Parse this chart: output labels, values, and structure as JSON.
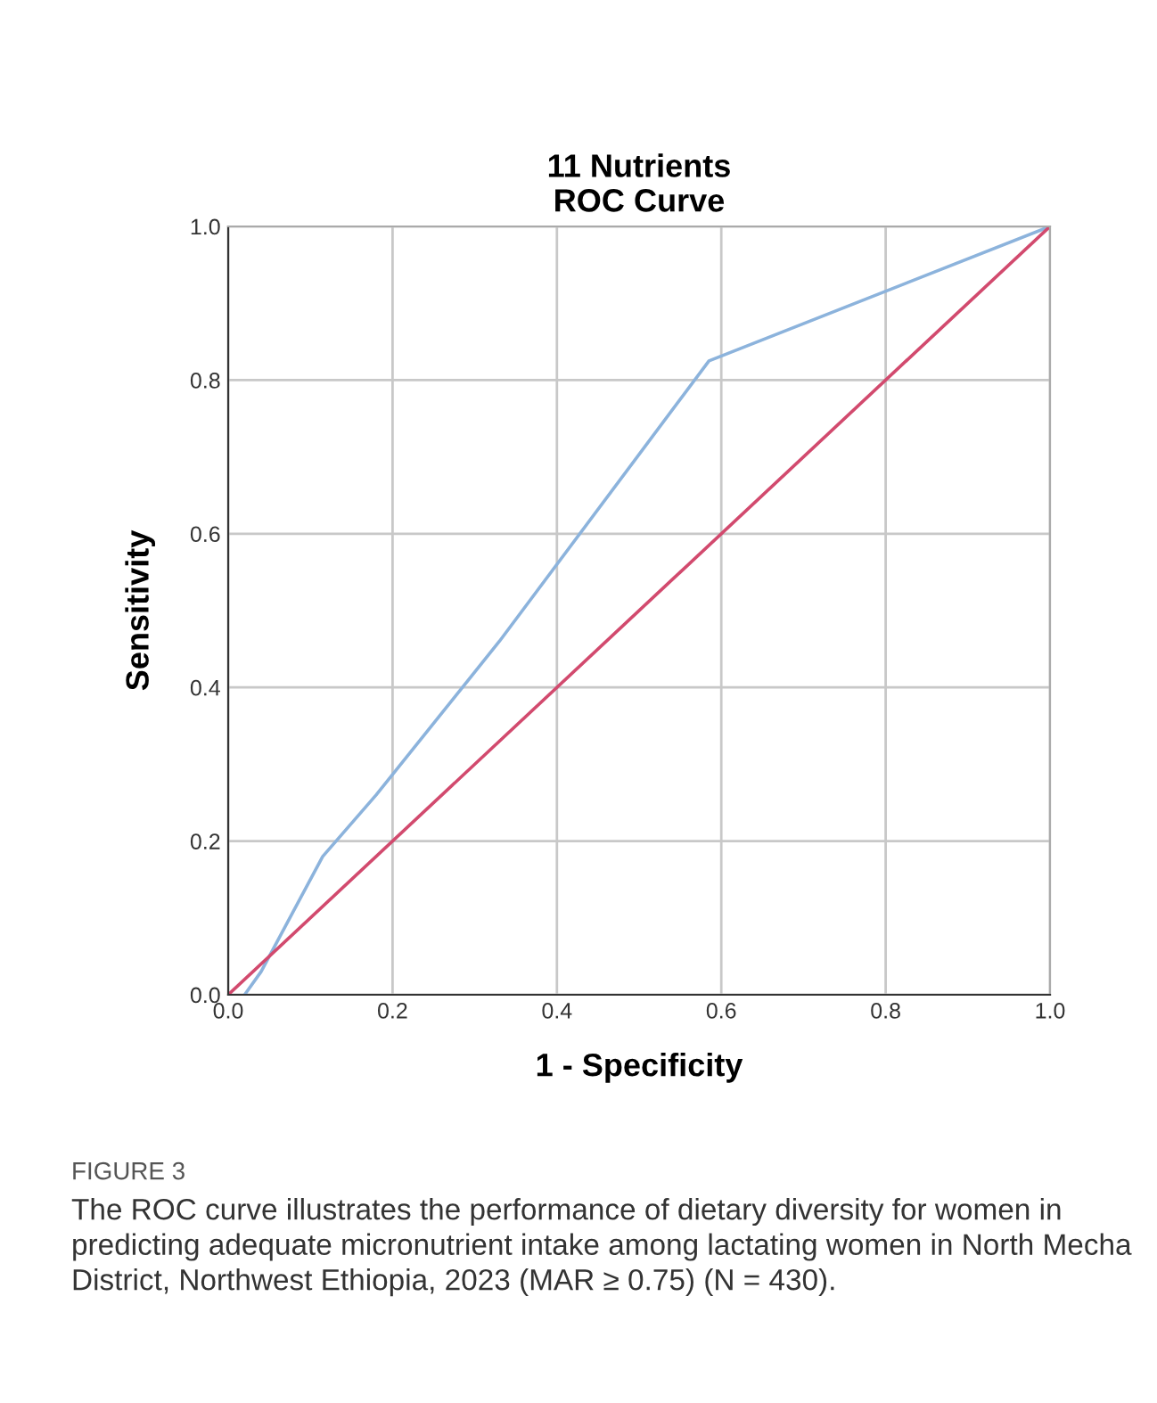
{
  "chart_data": {
    "type": "line",
    "title": "11 Nutrients\nROC Curve",
    "xlabel": "1 - Specificity",
    "ylabel": "Sensitivity",
    "series": [
      {
        "x": [
          0.02,
          0.04,
          0.115,
          0.18,
          0.33,
          0.585,
          1.0
        ],
        "values": [
          0.0,
          0.03,
          0.18,
          0.26,
          0.46,
          0.825,
          1.0
        ],
        "color": "#8cb3dc"
      },
      {
        "x": [
          0.0,
          1.0
        ],
        "values": [
          0.0,
          1.0
        ],
        "color": "#d24a6e"
      }
    ],
    "xlim": [
      0,
      1
    ],
    "ylim": [
      0,
      1
    ],
    "xticks": [
      {
        "value": 0,
        "label": "0.0"
      },
      0.2,
      0.4,
      0.6,
      0.8,
      {
        "value": 1,
        "label": "1.0"
      }
    ],
    "yticks": [
      {
        "value": 0,
        "label": "0.0"
      },
      0.2,
      0.4,
      0.6,
      0.8,
      {
        "value": 1,
        "label": "1.0"
      }
    ],
    "grid": true,
    "marker": "none",
    "line_style": "solid",
    "annotations": [
      "FIGURE 3",
      "The ROC curve illustrates the performance of dietary diversity for women in predicting adequate micronutrient intake among lactating women in North Mecha District, Northwest Ethiopia, 2023 (MAR ≥ 0.75) (N = 430)."
    ]
  }
}
